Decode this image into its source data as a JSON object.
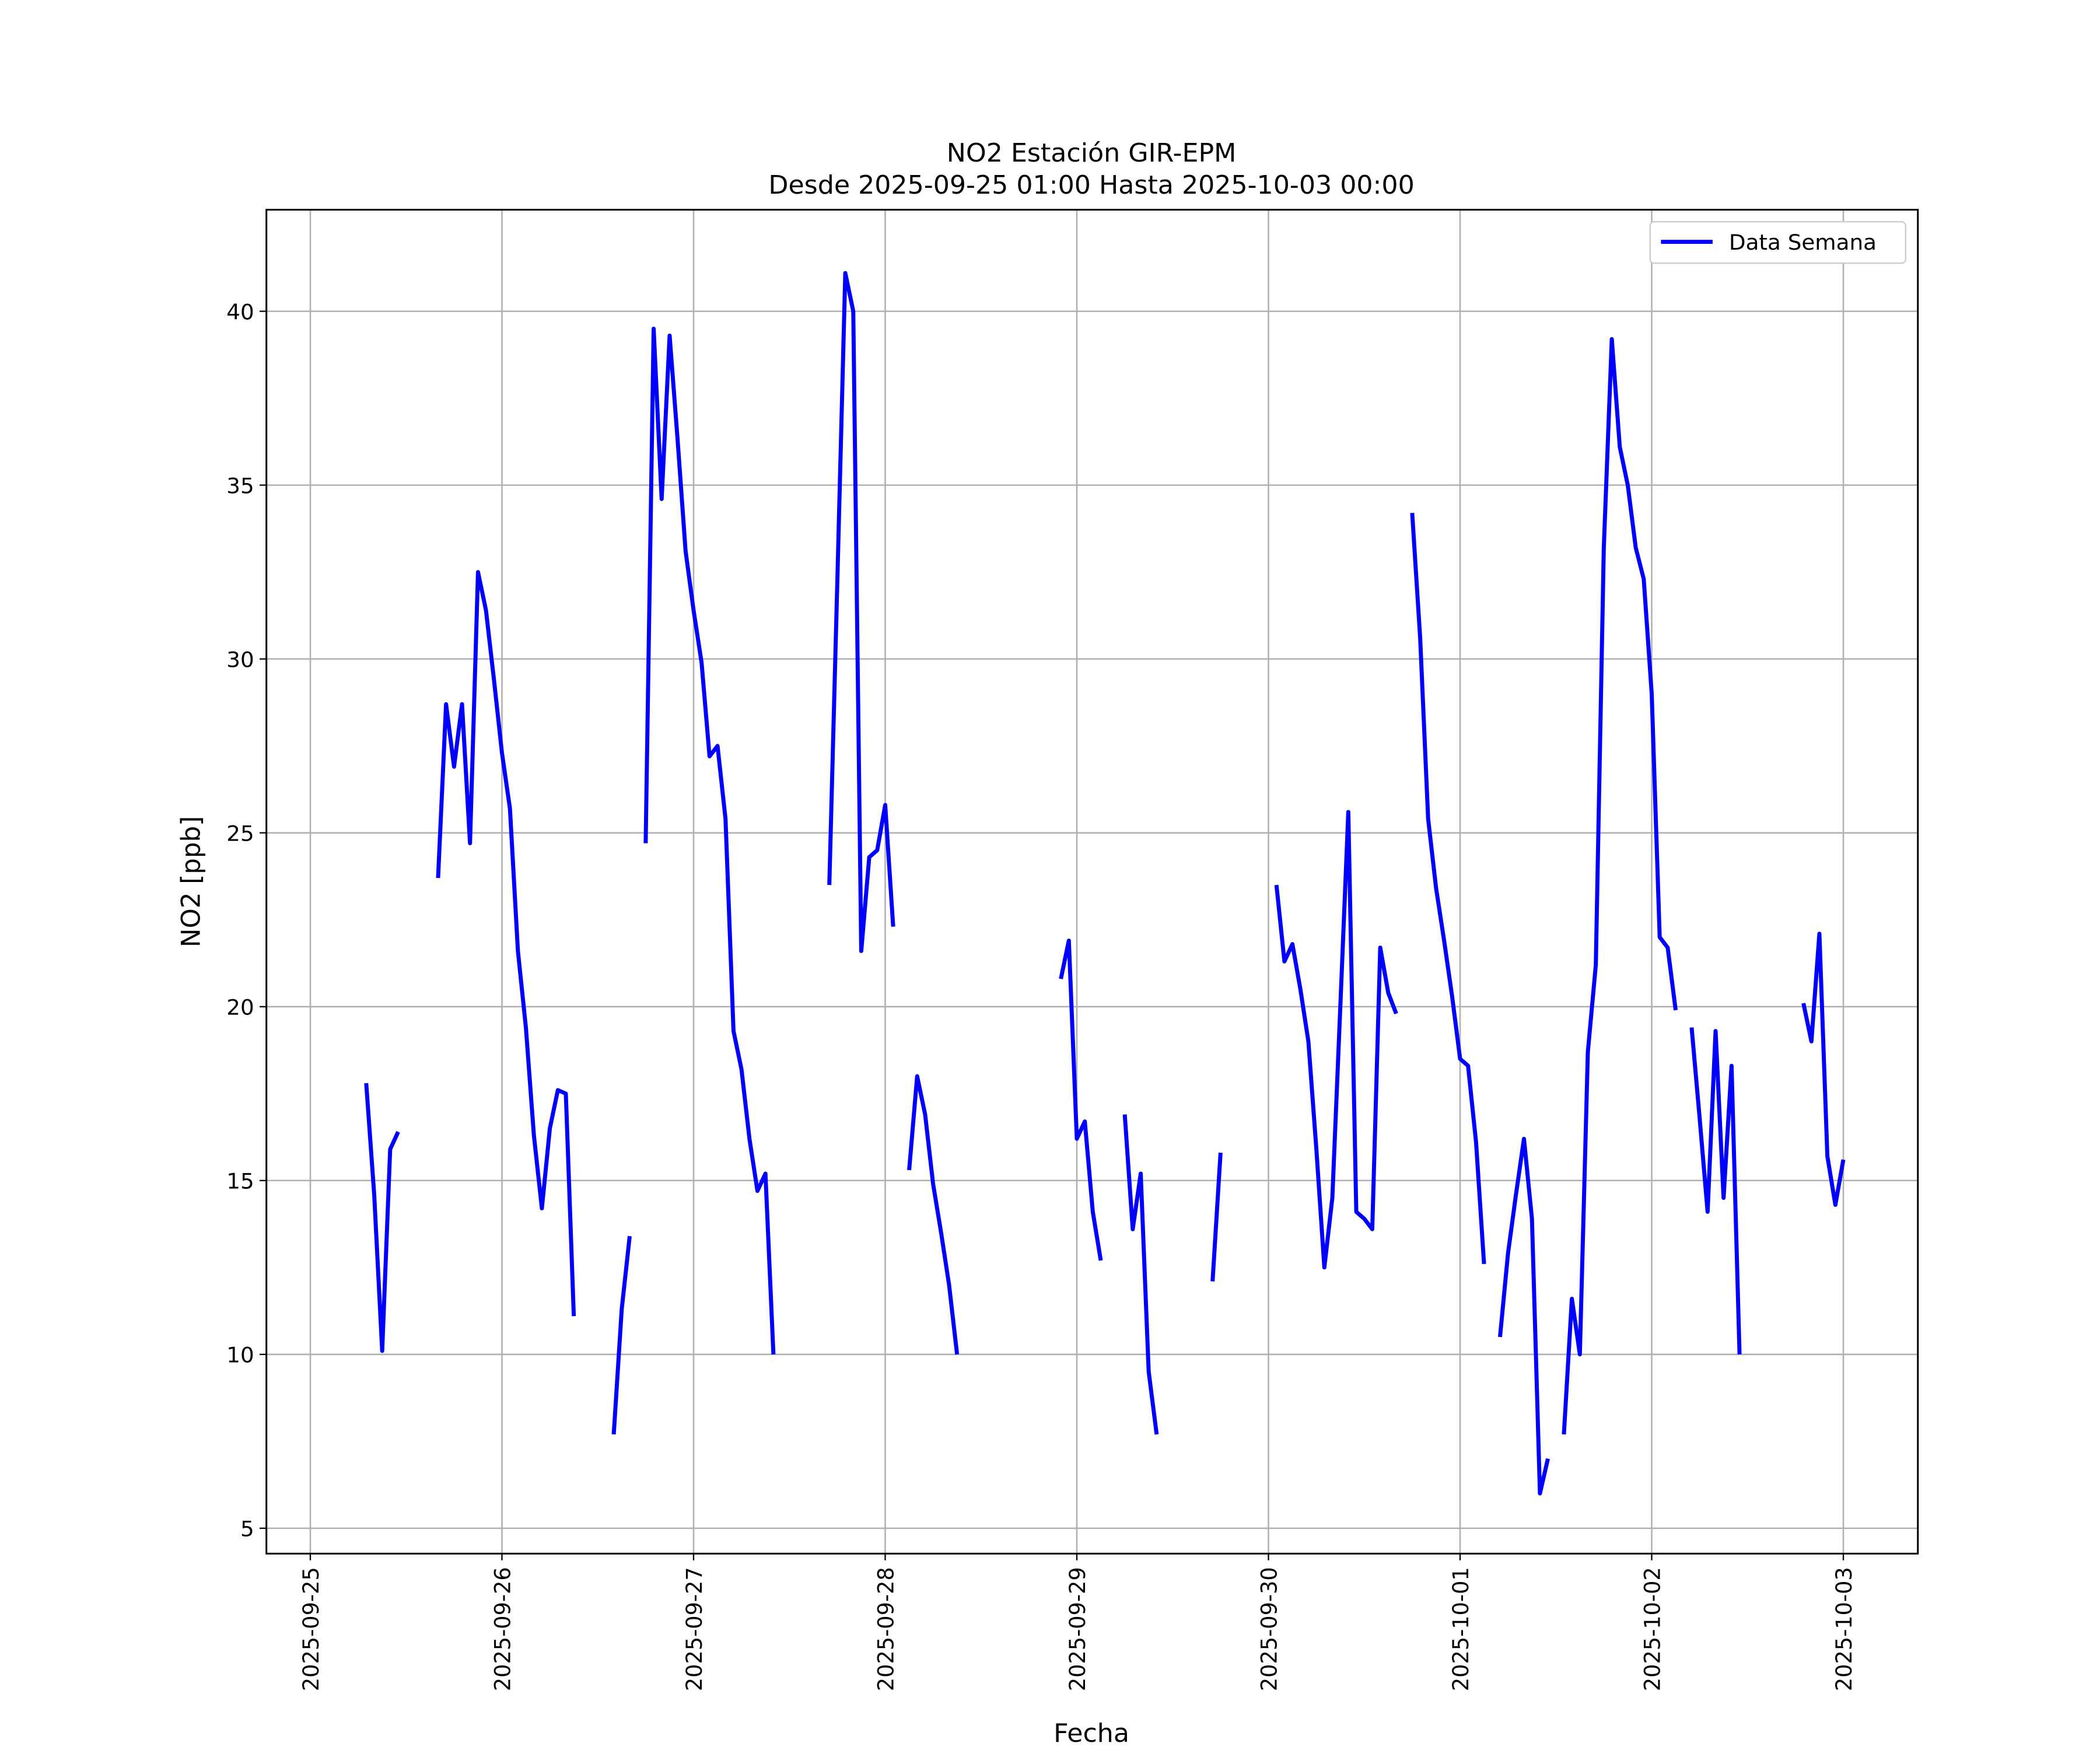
{
  "chart_data": {
    "type": "line",
    "title": "NO2 Estación GIR-EPM",
    "subtitle": "Desde 2025-09-25 01:00 Hasta 2025-10-03 00:00",
    "xlabel": "Fecha",
    "ylabel": "NO2 [ppb]",
    "x": [
      "2025-09-25 07:00",
      "2025-09-25 08:00",
      "2025-09-25 09:00",
      "2025-09-25 10:00",
      "2025-09-25 11:00",
      "2025-09-25 12:00",
      "2025-09-25 16:00",
      "2025-09-25 17:00",
      "2025-09-25 18:00",
      "2025-09-25 19:00",
      "2025-09-25 20:00",
      "2025-09-25 21:00",
      "2025-09-25 22:00",
      "2025-09-25 23:00",
      "2025-09-26 00:00",
      "2025-09-26 01:00",
      "2025-09-26 02:00",
      "2025-09-26 03:00",
      "2025-09-26 04:00",
      "2025-09-26 05:00",
      "2025-09-26 06:00",
      "2025-09-26 07:00",
      "2025-09-26 08:00",
      "2025-09-26 09:00",
      "2025-09-26 10:00",
      "2025-09-26 14:00",
      "2025-09-26 15:00",
      "2025-09-26 16:00",
      "2025-09-26 17:00",
      "2025-09-26 18:00",
      "2025-09-26 19:00",
      "2025-09-26 20:00",
      "2025-09-26 21:00",
      "2025-09-26 22:00",
      "2025-09-26 23:00",
      "2025-09-27 00:00",
      "2025-09-27 01:00",
      "2025-09-27 02:00",
      "2025-09-27 03:00",
      "2025-09-27 04:00",
      "2025-09-27 05:00",
      "2025-09-27 06:00",
      "2025-09-27 07:00",
      "2025-09-27 08:00",
      "2025-09-27 09:00",
      "2025-09-27 10:00",
      "2025-09-27 11:00",
      "2025-09-27 17:00",
      "2025-09-27 18:00",
      "2025-09-27 19:00",
      "2025-09-27 20:00",
      "2025-09-27 21:00",
      "2025-09-27 22:00",
      "2025-09-27 23:00",
      "2025-09-28 00:00",
      "2025-09-28 01:00",
      "2025-09-28 02:00",
      "2025-09-28 03:00",
      "2025-09-28 04:00",
      "2025-09-28 05:00",
      "2025-09-28 06:00",
      "2025-09-28 07:00",
      "2025-09-28 08:00",
      "2025-09-28 09:00",
      "2025-09-28 10:00",
      "2025-09-28 22:00",
      "2025-09-28 23:00",
      "2025-09-29 00:00",
      "2025-09-29 01:00",
      "2025-09-29 02:00",
      "2025-09-29 03:00",
      "2025-09-29 04:00",
      "2025-09-29 06:00",
      "2025-09-29 07:00",
      "2025-09-29 08:00",
      "2025-09-29 09:00",
      "2025-09-29 10:00",
      "2025-09-29 11:00",
      "2025-09-29 17:00",
      "2025-09-29 18:00",
      "2025-09-29 19:00",
      "2025-09-30 01:00",
      "2025-09-30 02:00",
      "2025-09-30 03:00",
      "2025-09-30 04:00",
      "2025-09-30 05:00",
      "2025-09-30 06:00",
      "2025-09-30 07:00",
      "2025-09-30 08:00",
      "2025-09-30 09:00",
      "2025-09-30 10:00",
      "2025-09-30 11:00",
      "2025-09-30 12:00",
      "2025-09-30 13:00",
      "2025-09-30 14:00",
      "2025-09-30 15:00",
      "2025-09-30 16:00",
      "2025-09-30 17:00",
      "2025-09-30 18:00",
      "2025-09-30 19:00",
      "2025-09-30 20:00",
      "2025-09-30 21:00",
      "2025-09-30 22:00",
      "2025-09-30 23:00",
      "2025-10-01 00:00",
      "2025-10-01 01:00",
      "2025-10-01 02:00",
      "2025-10-01 03:00",
      "2025-10-01 04:00",
      "2025-10-01 05:00",
      "2025-10-01 06:00",
      "2025-10-01 07:00",
      "2025-10-01 08:00",
      "2025-10-01 09:00",
      "2025-10-01 10:00",
      "2025-10-01 11:00",
      "2025-10-01 12:00",
      "2025-10-01 13:00",
      "2025-10-01 14:00",
      "2025-10-01 15:00",
      "2025-10-01 16:00",
      "2025-10-01 17:00",
      "2025-10-01 18:00",
      "2025-10-01 19:00",
      "2025-10-01 20:00",
      "2025-10-01 21:00",
      "2025-10-01 22:00",
      "2025-10-01 23:00",
      "2025-10-02 00:00",
      "2025-10-02 01:00",
      "2025-10-02 02:00",
      "2025-10-02 03:00",
      "2025-10-02 04:00",
      "2025-10-02 05:00",
      "2025-10-02 06:00",
      "2025-10-02 07:00",
      "2025-10-02 08:00",
      "2025-10-02 09:00",
      "2025-10-02 10:00",
      "2025-10-02 11:00",
      "2025-10-02 12:00",
      "2025-10-02 19:00",
      "2025-10-02 20:00",
      "2025-10-02 21:00",
      "2025-10-02 22:00",
      "2025-10-02 23:00",
      "2025-10-03 00:00"
    ],
    "series": [
      {
        "name": "Data Semana",
        "color": "#0000ff",
        "values": [
          17.8,
          14.6,
          10.1,
          15.9,
          16.4,
          null,
          23.7,
          28.7,
          26.9,
          28.7,
          24.7,
          32.5,
          31.4,
          29.4,
          27.3,
          25.7,
          21.6,
          19.4,
          16.3,
          14.2,
          16.5,
          17.6,
          17.5,
          11.1,
          null,
          7.7,
          11.3,
          13.4,
          null,
          24.7,
          39.5,
          34.6,
          39.3,
          36.3,
          33.1,
          31.4,
          29.9,
          27.2,
          27.5,
          25.4,
          19.3,
          18.2,
          16.2,
          14.7,
          15.2,
          10.0,
          null,
          23.5,
          32.2,
          41.1,
          40.0,
          21.6,
          24.3,
          24.5,
          25.8,
          22.3,
          null,
          15.3,
          18.0,
          16.9,
          14.9,
          13.5,
          12.0,
          10.0,
          null,
          20.8,
          21.9,
          16.2,
          16.7,
          14.1,
          12.7,
          null,
          16.9,
          13.6,
          15.2,
          9.5,
          7.7,
          null,
          12.1,
          15.8,
          null,
          23.5,
          21.3,
          21.8,
          20.5,
          19.0,
          15.9,
          12.5,
          14.5,
          20.0,
          25.6,
          14.1,
          13.9,
          13.6,
          21.7,
          20.4,
          19.8,
          null,
          34.2,
          30.6,
          25.4,
          23.4,
          21.9,
          20.3,
          18.5,
          18.3,
          16.1,
          12.6,
          null,
          10.5,
          12.9,
          14.6,
          16.2,
          13.9,
          6.0,
          7.0,
          null,
          7.7,
          11.6,
          10.0,
          18.7,
          21.2,
          33.2,
          39.2,
          36.1,
          35.0,
          33.2,
          32.3,
          29.0,
          22.0,
          21.7,
          19.9,
          null,
          19.4,
          16.8,
          14.1,
          19.3,
          14.5,
          18.3,
          10.0,
          null,
          20.1,
          19.0,
          22.1,
          15.7,
          14.3,
          15.6
        ]
      }
    ],
    "xlim": [
      "2025-09-24 18:30",
      "2025-10-03 09:20"
    ],
    "xticks": [
      "2025-09-25",
      "2025-09-26",
      "2025-09-27",
      "2025-09-28",
      "2025-09-29",
      "2025-09-30",
      "2025-10-01",
      "2025-10-02",
      "2025-10-03"
    ],
    "ylim": [
      4.27,
      42.92
    ],
    "yticks": [
      5,
      10,
      15,
      20,
      25,
      30,
      35,
      40
    ],
    "grid": true,
    "legend": "upper right"
  }
}
